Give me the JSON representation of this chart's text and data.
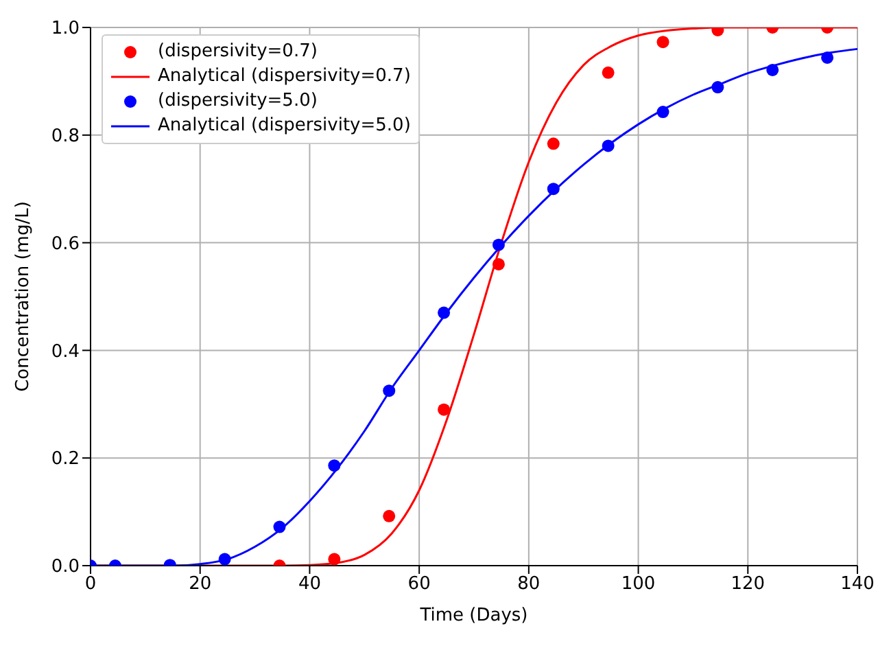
{
  "chart_data": {
    "type": "line",
    "xlabel": "Time (Days)",
    "ylabel": "Concentration (mg/L)",
    "xlim": [
      0,
      140
    ],
    "ylim": [
      0,
      1
    ],
    "xticks": [
      0,
      20,
      40,
      60,
      80,
      100,
      120,
      140
    ],
    "yticks": [
      {
        "value": 0,
        "label": "0.0"
      },
      {
        "value": 0.2,
        "label": "0.2"
      },
      {
        "value": 0.4,
        "label": "0.4"
      },
      {
        "value": 0.6,
        "label": "0.6"
      },
      {
        "value": 0.8,
        "label": "0.8"
      },
      {
        "value": 1,
        "label": "1.0"
      }
    ],
    "grid": true,
    "legend": "top left",
    "series": [
      {
        "name": "(dispersivity=0.7)",
        "type": "scatter",
        "marker": "circle",
        "color": "#ff0000",
        "x": [
          34.5,
          44.5,
          54.5,
          64.5,
          74.5,
          84.5,
          94.5,
          104.5,
          114.5,
          124.5,
          134.5
        ],
        "values": [
          0,
          0.012,
          0.092,
          0.29,
          0.56,
          0.784,
          0.916,
          0.973,
          0.995,
          1.0,
          1.0
        ]
      },
      {
        "name": "Analytical (dispersivity=0.7)",
        "color": "#ff0000",
        "x": [
          0,
          35,
          40,
          45,
          50,
          55,
          60,
          65,
          70,
          75,
          80,
          85,
          90,
          95,
          100,
          105,
          110,
          115,
          140
        ],
        "values": [
          0,
          0,
          0.001,
          0.005,
          0.02,
          0.06,
          0.14,
          0.27,
          0.43,
          0.6,
          0.75,
          0.86,
          0.93,
          0.965,
          0.985,
          0.994,
          0.998,
          1,
          1
        ]
      },
      {
        "name": "(dispersivity=5.0)",
        "type": "scatter",
        "marker": "circle",
        "color": "#0000ff",
        "x": [
          0,
          4.5,
          14.5,
          24.5,
          34.5,
          44.5,
          54.5,
          64.5,
          74.5,
          84.5,
          94.5,
          104.5,
          114.5,
          124.5,
          134.5
        ],
        "values": [
          0,
          0,
          0.001,
          0.012,
          0.072,
          0.186,
          0.325,
          0.47,
          0.596,
          0.7,
          0.78,
          0.843,
          0.889,
          0.921,
          0.944
        ]
      },
      {
        "name": "Analytical (dispersivity=5.0)",
        "color": "#0000ff",
        "x": [
          0,
          15,
          20,
          25,
          30,
          35,
          40,
          45,
          50,
          55,
          60,
          65,
          70,
          75,
          80,
          85,
          90,
          95,
          100,
          105,
          110,
          115,
          120,
          125,
          130,
          135,
          140
        ],
        "values": [
          0,
          0,
          0.003,
          0.012,
          0.035,
          0.07,
          0.12,
          0.18,
          0.25,
          0.33,
          0.4,
          0.47,
          0.535,
          0.595,
          0.65,
          0.7,
          0.745,
          0.785,
          0.82,
          0.85,
          0.875,
          0.895,
          0.915,
          0.93,
          0.943,
          0.953,
          0.96
        ]
      }
    ]
  }
}
